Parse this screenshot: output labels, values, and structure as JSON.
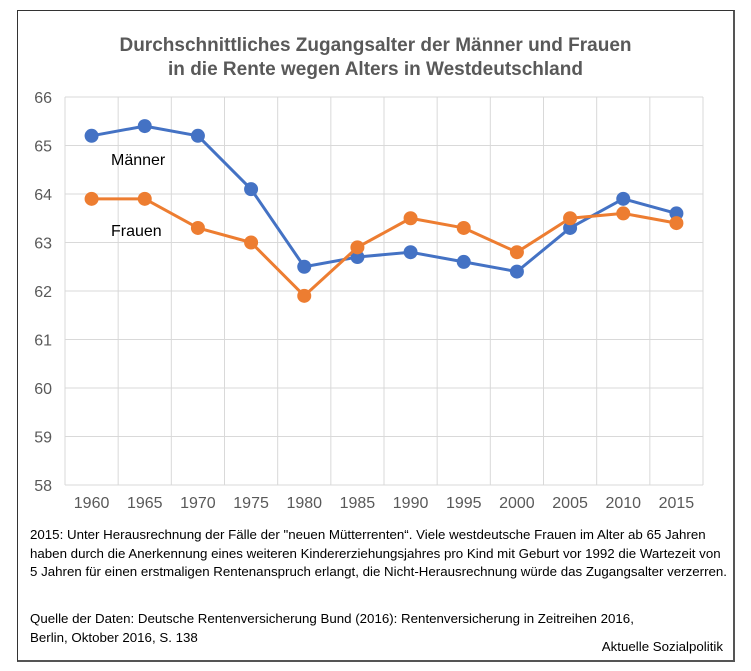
{
  "chart_data": {
    "type": "line",
    "title": "Durchschnittliches Zugangsalter der Männer und Frauen in die Rente wegen Alters in Westdeutschland",
    "title_lines": [
      "Durchschnittliches Zugangsalter der Männer und Frauen",
      "in die Rente wegen Alters in Westdeutschland"
    ],
    "xlabel": "",
    "ylabel": "",
    "categories": [
      "1960",
      "1965",
      "1970",
      "1975",
      "1980",
      "1985",
      "1990",
      "1995",
      "2000",
      "2005",
      "2010",
      "2015"
    ],
    "yticks": [
      "58",
      "59",
      "60",
      "61",
      "62",
      "63",
      "64",
      "65",
      "66"
    ],
    "ylim": [
      58,
      66
    ],
    "grid": true,
    "legend": "inline labels on lines (top-left)",
    "series": [
      {
        "name": "Männer",
        "color": "#4472C4",
        "values": [
          65.2,
          65.4,
          65.2,
          64.1,
          62.5,
          62.7,
          62.8,
          62.6,
          62.4,
          63.3,
          63.9,
          63.6
        ]
      },
      {
        "name": "Frauen",
        "color": "#ED7D31",
        "values": [
          63.9,
          63.9,
          63.3,
          63.0,
          61.9,
          62.9,
          63.5,
          63.3,
          62.8,
          63.5,
          63.6,
          63.4
        ]
      }
    ]
  },
  "footnote": "2015: Unter Herausrechnung der Fälle der \"neuen Mütterrenten“. Viele westdeutsche Frauen im Alter ab 65 Jahren haben durch die Anerkennung eines weiteren Kindererziehungsjahres pro Kind mit Geburt vor 1992 die Wartezeit von 5 Jahren für einen erstmaligen Rentenanspruch erlangt, die Nicht-Herausrechnung würde das Zugangsalter verzerren.",
  "source_line1": "Quelle der Daten: Deutsche Rentenversicherung Bund (2016): Rentenversicherung in Zeitreihen 2016,",
  "source_line2": "Berlin, Oktober 2016, S. 138",
  "credit": "Aktuelle Sozialpolitik"
}
